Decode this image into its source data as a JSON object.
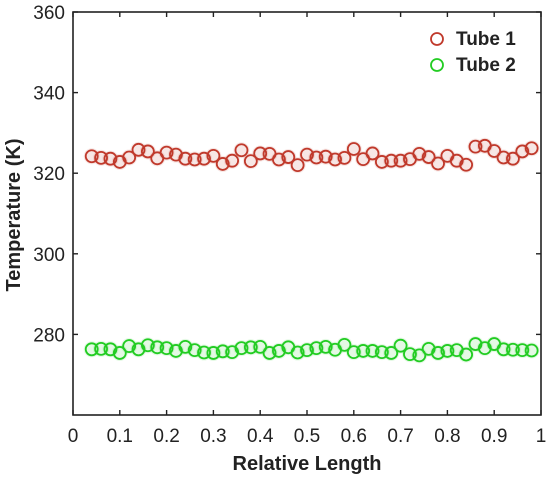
{
  "chart_data": {
    "type": "scatter",
    "title": "",
    "xlabel": "Relative Length",
    "ylabel": "Temperature (K)",
    "xlim": [
      0,
      1
    ],
    "ylim": [
      260,
      360
    ],
    "xticks": [
      "0",
      "0.1",
      "0.2",
      "0.3",
      "0.4",
      "0.5",
      "0.6",
      "0.7",
      "0.8",
      "0.9",
      "1"
    ],
    "yticks": [
      "280",
      "300",
      "320",
      "340",
      "360"
    ],
    "legend_position": "top-right",
    "grid": false,
    "series": [
      {
        "name": "Tube 1",
        "color": "#c0392b",
        "x": [
          0.04,
          0.06,
          0.08,
          0.1,
          0.12,
          0.14,
          0.16,
          0.18,
          0.2,
          0.22,
          0.24,
          0.26,
          0.28,
          0.3,
          0.32,
          0.34,
          0.36,
          0.38,
          0.4,
          0.42,
          0.44,
          0.46,
          0.48,
          0.5,
          0.52,
          0.54,
          0.56,
          0.58,
          0.6,
          0.62,
          0.64,
          0.66,
          0.68,
          0.7,
          0.72,
          0.74,
          0.76,
          0.78,
          0.8,
          0.82,
          0.84,
          0.86,
          0.88,
          0.9,
          0.92,
          0.94,
          0.96,
          0.98
        ],
        "y": [
          324.2,
          323.8,
          323.6,
          322.8,
          323.9,
          325.8,
          325.4,
          323.7,
          325.1,
          324.6,
          323.6,
          323.4,
          323.6,
          324.3,
          322.3,
          323.1,
          325.7,
          323.0,
          324.9,
          324.8,
          323.4,
          324.0,
          322.0,
          324.6,
          323.9,
          324.1,
          323.4,
          323.8,
          326.0,
          323.5,
          324.9,
          322.8,
          323.1,
          323.1,
          323.5,
          324.8,
          324.0,
          322.4,
          324.3,
          323.1,
          322.1,
          326.6,
          326.8,
          325.5,
          323.9,
          323.6,
          325.4,
          326.2
        ]
      },
      {
        "name": "Tube 2",
        "color": "#22cc22",
        "x": [
          0.04,
          0.06,
          0.08,
          0.1,
          0.12,
          0.14,
          0.16,
          0.18,
          0.2,
          0.22,
          0.24,
          0.26,
          0.28,
          0.3,
          0.32,
          0.34,
          0.36,
          0.38,
          0.4,
          0.42,
          0.44,
          0.46,
          0.48,
          0.5,
          0.52,
          0.54,
          0.56,
          0.58,
          0.6,
          0.62,
          0.64,
          0.66,
          0.68,
          0.7,
          0.72,
          0.74,
          0.76,
          0.78,
          0.8,
          0.82,
          0.84,
          0.86,
          0.88,
          0.9,
          0.92,
          0.94,
          0.96,
          0.98
        ],
        "y": [
          276.3,
          276.4,
          276.3,
          275.4,
          277.1,
          276.3,
          277.3,
          276.8,
          276.6,
          275.9,
          276.9,
          276.1,
          275.5,
          275.4,
          275.8,
          275.6,
          276.6,
          276.8,
          276.9,
          275.4,
          275.9,
          276.8,
          275.5,
          276.1,
          276.6,
          276.9,
          276.2,
          277.4,
          275.6,
          275.9,
          275.9,
          275.6,
          275.4,
          277.2,
          275.1,
          274.8,
          276.4,
          275.4,
          275.9,
          276.1,
          275.0,
          277.6,
          276.6,
          277.6,
          276.3,
          276.2,
          276.1,
          276.0
        ]
      }
    ]
  }
}
